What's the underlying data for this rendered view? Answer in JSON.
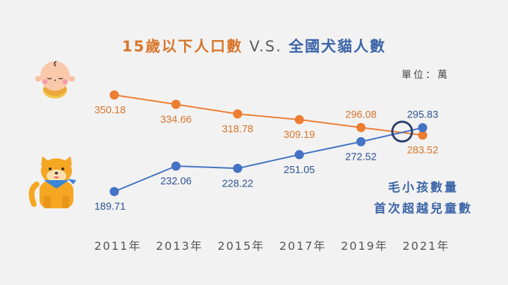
{
  "title": {
    "part1": "15歲以下人口數",
    "part2": "V.S.",
    "part3": "全國犬貓人數"
  },
  "unit_label": "單位：萬",
  "annotation": [
    "毛小孩數量",
    "首次超越兒童數"
  ],
  "icons": {
    "child": "baby-icon",
    "pet": "dog-icon"
  },
  "colors": {
    "children": "#ed7d31",
    "pets": "#4472c4",
    "highlight_circle": "#2a3f6e",
    "background": "#f2f2f2"
  },
  "chart_data": {
    "type": "line",
    "title": "15歲以下人口數 V.S. 全國犬貓人數",
    "xlabel": "",
    "ylabel": "單位：萬",
    "categories": [
      "2011年",
      "2013年",
      "2015年",
      "2017年",
      "2019年",
      "2021年"
    ],
    "series": [
      {
        "name": "15歲以下人口數",
        "color": "#ed7d31",
        "values": [
          350.18,
          334.66,
          318.78,
          309.19,
          296.08,
          283.52
        ],
        "label_pos": [
          "below",
          "below",
          "below",
          "below",
          "above",
          "below"
        ]
      },
      {
        "name": "全國犬貓人數",
        "color": "#4472c4",
        "values": [
          189.71,
          232.06,
          228.22,
          251.05,
          272.52,
          295.83
        ],
        "label_pos": [
          "below",
          "below",
          "below",
          "below",
          "below",
          "above"
        ]
      }
    ],
    "highlight": {
      "between": [
        "2019年",
        "2021年"
      ],
      "note": "毛小孩數量首次超越兒童數"
    },
    "ylim": [
      180,
      360
    ],
    "grid": false,
    "legend": "none"
  }
}
